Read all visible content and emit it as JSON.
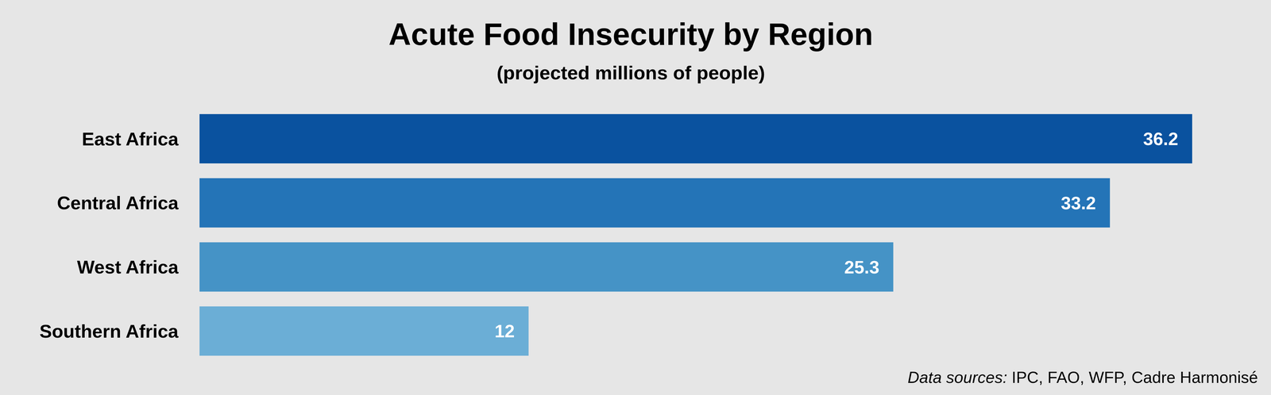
{
  "chart_data": {
    "type": "bar",
    "orientation": "horizontal",
    "title": "Acute Food Insecurity by Region",
    "subtitle": "(projected millions of people)",
    "categories": [
      "East Africa",
      "Central Africa",
      "West Africa",
      "Southern Africa"
    ],
    "values": [
      36.2,
      33.2,
      25.3,
      12
    ],
    "colors": [
      "#0a529f",
      "#2474b7",
      "#4593c6",
      "#6baed6"
    ],
    "xlim": [
      0,
      36.2
    ],
    "data_labels": true,
    "tick_labels": "y",
    "grid": false,
    "source_label": "Data sources:",
    "source": "IPC, FAO, WFP, Cadre Harmonisé"
  }
}
